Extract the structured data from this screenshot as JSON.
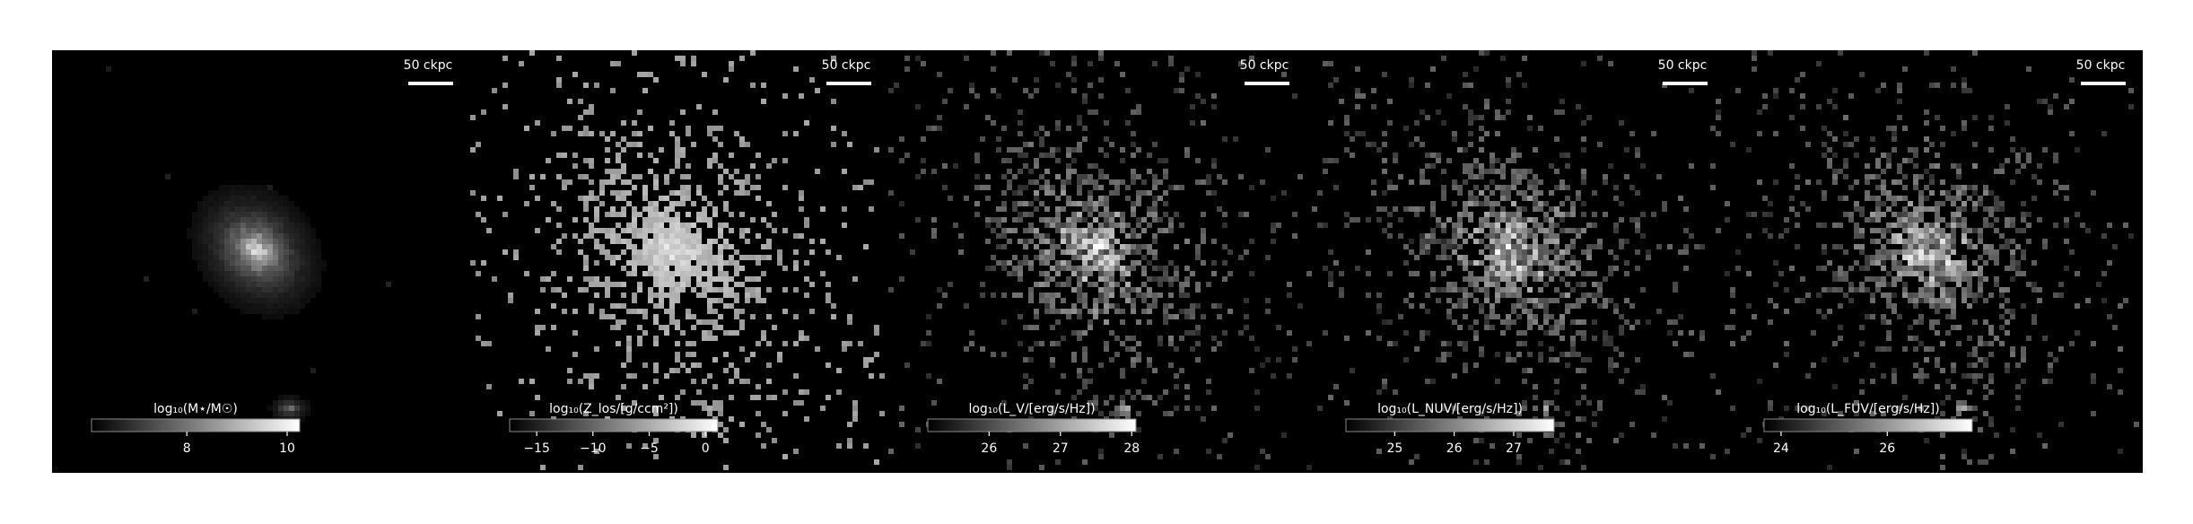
{
  "panels": [
    {
      "scalebar": "50 ckpc",
      "colorbar": {
        "label": "log₁₀(M⋆/M☉)",
        "lim": [
          6.1,
          10.25
        ],
        "ticks": [
          8,
          10
        ]
      }
    },
    {
      "scalebar": "50 ckpc",
      "colorbar": {
        "label": "log₁₀(Z_los/[g/ccm²])",
        "lim": [
          -17.4,
          1.1
        ],
        "ticks": [
          {
            "value": -15,
            "label": "−15"
          },
          {
            "value": -10,
            "label": "−10"
          },
          {
            "value": -5,
            "label": "−5"
          },
          0
        ]
      }
    },
    {
      "scalebar": "50 ckpc",
      "colorbar": {
        "label": "log₁₀(L_V/[erg/s/Hz])",
        "lim": [
          25.14,
          28.06
        ],
        "ticks": [
          26,
          27,
          28
        ]
      }
    },
    {
      "scalebar": "50 ckpc",
      "colorbar": {
        "label": "log₁₀(L_NUV/[erg/s/Hz])",
        "lim": [
          24.18,
          27.68
        ],
        "ticks": [
          25,
          26,
          27
        ]
      }
    },
    {
      "scalebar": "50 ckpc",
      "colorbar": {
        "label": "log₁₀(L_FUV/[erg/s/Hz])",
        "lim": [
          23.68,
          27.6
        ],
        "ticks": [
          24,
          26
        ]
      }
    }
  ]
}
